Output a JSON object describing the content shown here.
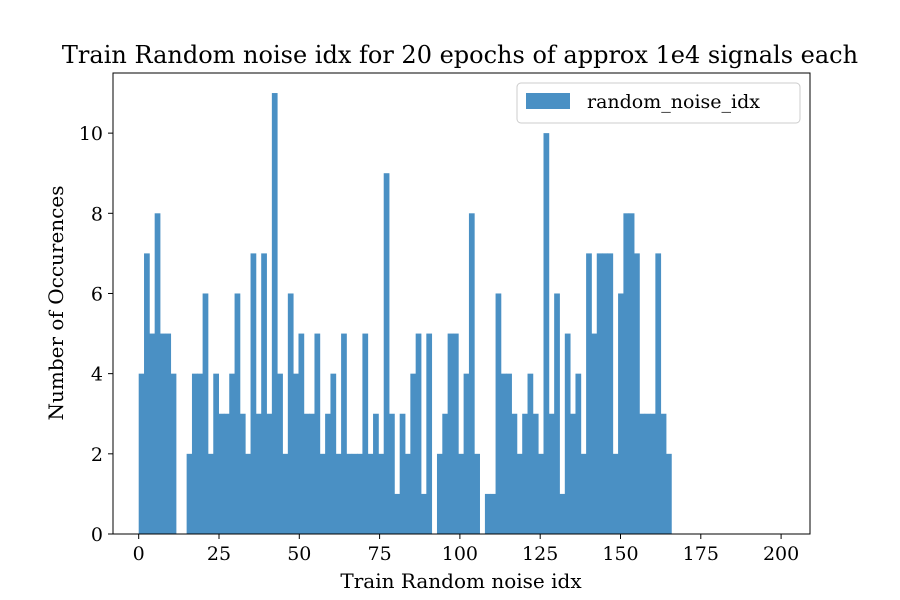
{
  "chart_data": {
    "type": "bar",
    "title": "Train Random noise idx for 20 epochs of approx 1e4 signals each",
    "xlabel": "Train Random noise idx",
    "ylabel": "Number of Occurences",
    "xlim": [
      -8,
      209
    ],
    "ylim": [
      0,
      11.5
    ],
    "x_ticks": [
      0,
      25,
      50,
      75,
      100,
      125,
      150,
      175,
      200
    ],
    "y_ticks": [
      0,
      2,
      4,
      6,
      8,
      10
    ],
    "bin_start": 0,
    "bin_width": 1.6583,
    "series": [
      {
        "name": "random_noise_idx",
        "color": "#4a90c4",
        "values": [
          4,
          7,
          5,
          8,
          5,
          5,
          4,
          0,
          0,
          2,
          4,
          4,
          6,
          2,
          4,
          3,
          3,
          4,
          6,
          3,
          2,
          7,
          3,
          7,
          3,
          11,
          4,
          2,
          6,
          4,
          5,
          3,
          3,
          5,
          2,
          3,
          4,
          2,
          5,
          2,
          2,
          2,
          5,
          2,
          3,
          2,
          9,
          3,
          1,
          3,
          2,
          4,
          5,
          1,
          5,
          0,
          2,
          3,
          5,
          5,
          2,
          4,
          8,
          2,
          0,
          1,
          1,
          6,
          4,
          4,
          3,
          2,
          3,
          4,
          3,
          2,
          10,
          3,
          6,
          1,
          5,
          3,
          4,
          2,
          7,
          5,
          7,
          7,
          7,
          2,
          6,
          8,
          8,
          7,
          3,
          3,
          3,
          7,
          3,
          2
        ]
      }
    ],
    "legend": {
      "position": "top-right",
      "label": "random_noise_idx"
    },
    "grid": false
  }
}
